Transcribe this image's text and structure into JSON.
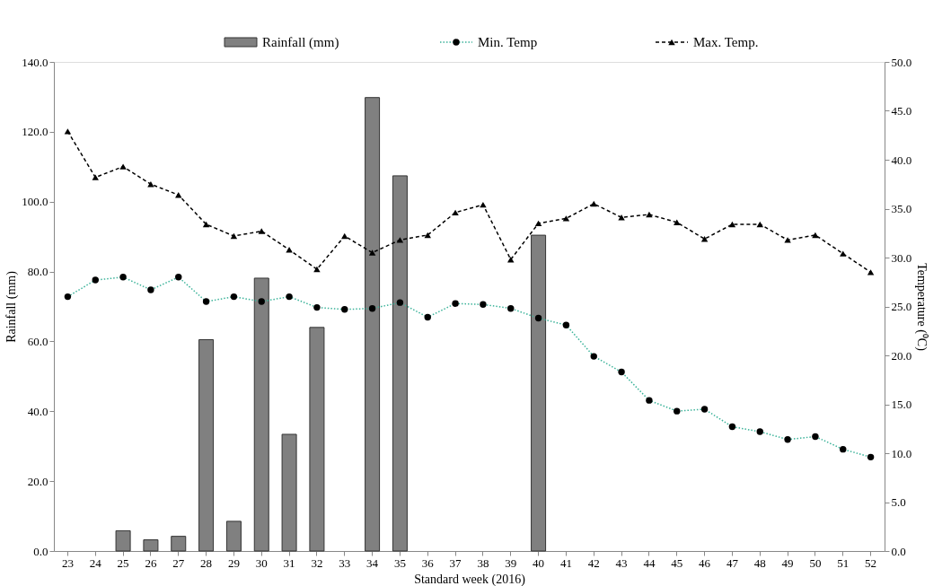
{
  "chart_data": {
    "type": "bar",
    "categories": [
      "23",
      "24",
      "25",
      "26",
      "27",
      "28",
      "29",
      "30",
      "31",
      "32",
      "33",
      "34",
      "35",
      "36",
      "37",
      "38",
      "39",
      "40",
      "41",
      "42",
      "43",
      "44",
      "45",
      "46",
      "47",
      "48",
      "49",
      "50",
      "51",
      "52"
    ],
    "series": [
      {
        "name": "Rainfall (mm)",
        "color": "#808080",
        "values": [
          null,
          null,
          5.8,
          3.2,
          4.2,
          60.5,
          8.5,
          78.1,
          33.4,
          64.0,
          null,
          129.8,
          107.4,
          null,
          null,
          null,
          null,
          90.4,
          null,
          null,
          null,
          null,
          null,
          null,
          null,
          null,
          null,
          null,
          null,
          null
        ]
      },
      {
        "name": "Min. Temp",
        "type": "line",
        "axis": "y2",
        "color": "#3cb39a",
        "marker": "circle",
        "line_style": "dotted",
        "values": [
          26.0,
          27.7,
          28.0,
          26.7,
          28.0,
          25.5,
          26.0,
          25.5,
          26.0,
          24.9,
          24.7,
          24.8,
          25.4,
          23.9,
          25.3,
          25.2,
          24.8,
          23.8,
          23.1,
          19.9,
          18.3,
          15.4,
          14.3,
          14.5,
          12.7,
          12.2,
          11.4,
          11.7,
          10.4,
          9.6
        ]
      },
      {
        "name": "Max. Temp.",
        "type": "line",
        "axis": "y2",
        "color": "#000000",
        "marker": "triangle",
        "line_style": "dashed",
        "values": [
          42.9,
          38.2,
          39.3,
          37.5,
          36.4,
          33.4,
          32.2,
          32.7,
          30.8,
          28.8,
          32.2,
          30.5,
          31.8,
          32.3,
          34.6,
          35.4,
          29.8,
          33.5,
          34.0,
          35.5,
          34.1,
          34.4,
          33.6,
          31.9,
          33.4,
          33.4,
          31.8,
          32.3,
          30.4,
          28.5
        ]
      }
    ],
    "xlabel": "Standard week (2016)",
    "ylabel": "Rainfall (mm)",
    "y2label": "Temperature (⁰C)",
    "ylim": [
      0,
      140
    ],
    "yticks": [
      {
        "value": 0,
        "label": "0.0"
      },
      {
        "value": 20,
        "label": "20.0"
      },
      {
        "value": 40,
        "label": "40.0"
      },
      {
        "value": 60,
        "label": "60.0"
      },
      {
        "value": 80,
        "label": "80.0"
      },
      {
        "value": 100,
        "label": "100.0"
      },
      {
        "value": 120,
        "label": "120.0"
      },
      {
        "value": 140,
        "label": "140.0"
      }
    ],
    "y2lim": [
      0,
      50
    ],
    "y2ticks": [
      {
        "value": 0,
        "label": "0.0"
      },
      {
        "value": 5,
        "label": "5.0"
      },
      {
        "value": 10,
        "label": "10.0"
      },
      {
        "value": 15,
        "label": "15.0"
      },
      {
        "value": 20,
        "label": "20.0"
      },
      {
        "value": 25,
        "label": "25.0"
      },
      {
        "value": 30,
        "label": "30.0"
      },
      {
        "value": 35,
        "label": "35.0"
      },
      {
        "value": 40,
        "label": "40.0"
      },
      {
        "value": 45,
        "label": "45.0"
      },
      {
        "value": 50,
        "label": "50.0"
      }
    ],
    "grid": false,
    "legend": "top"
  }
}
